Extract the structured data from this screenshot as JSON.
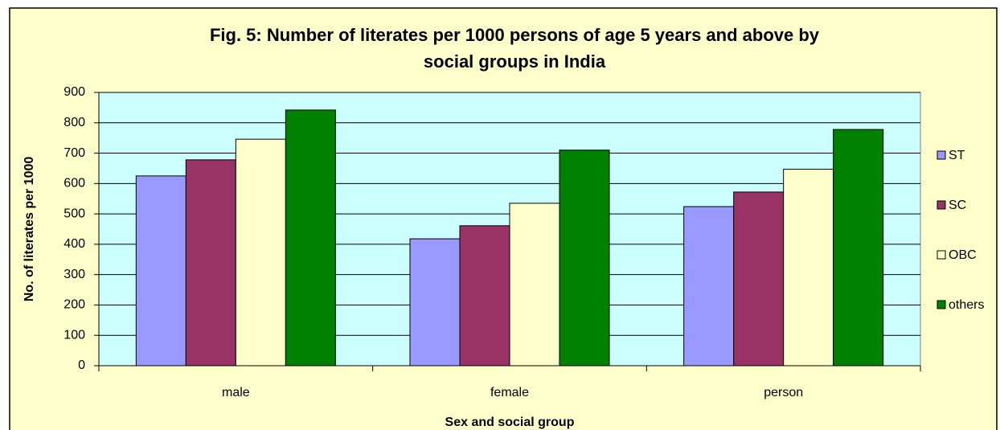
{
  "chart_data": {
    "type": "bar",
    "title": [
      "Fig. 5: Number of literates per 1000 persons of age 5 years and above by",
      "social groups in India"
    ],
    "x_label": "Sex and social group",
    "y_label": "No. of literates per 1000",
    "categories": [
      "male",
      "female",
      "person"
    ],
    "series": [
      {
        "name": "ST",
        "color": "#9999ff",
        "values": [
          625,
          418,
          524
        ]
      },
      {
        "name": "SC",
        "color": "#993366",
        "values": [
          678,
          461,
          572
        ]
      },
      {
        "name": "OBC",
        "color": "#ffffcc",
        "values": [
          746,
          535,
          647
        ]
      },
      {
        "name": "others",
        "color": "#008000",
        "values": [
          842,
          710,
          778
        ]
      }
    ],
    "ylim": [
      0,
      900
    ],
    "yticks": [
      0,
      100,
      200,
      300,
      400,
      500,
      600,
      700,
      800,
      900
    ],
    "grid": true,
    "legend": "right"
  }
}
